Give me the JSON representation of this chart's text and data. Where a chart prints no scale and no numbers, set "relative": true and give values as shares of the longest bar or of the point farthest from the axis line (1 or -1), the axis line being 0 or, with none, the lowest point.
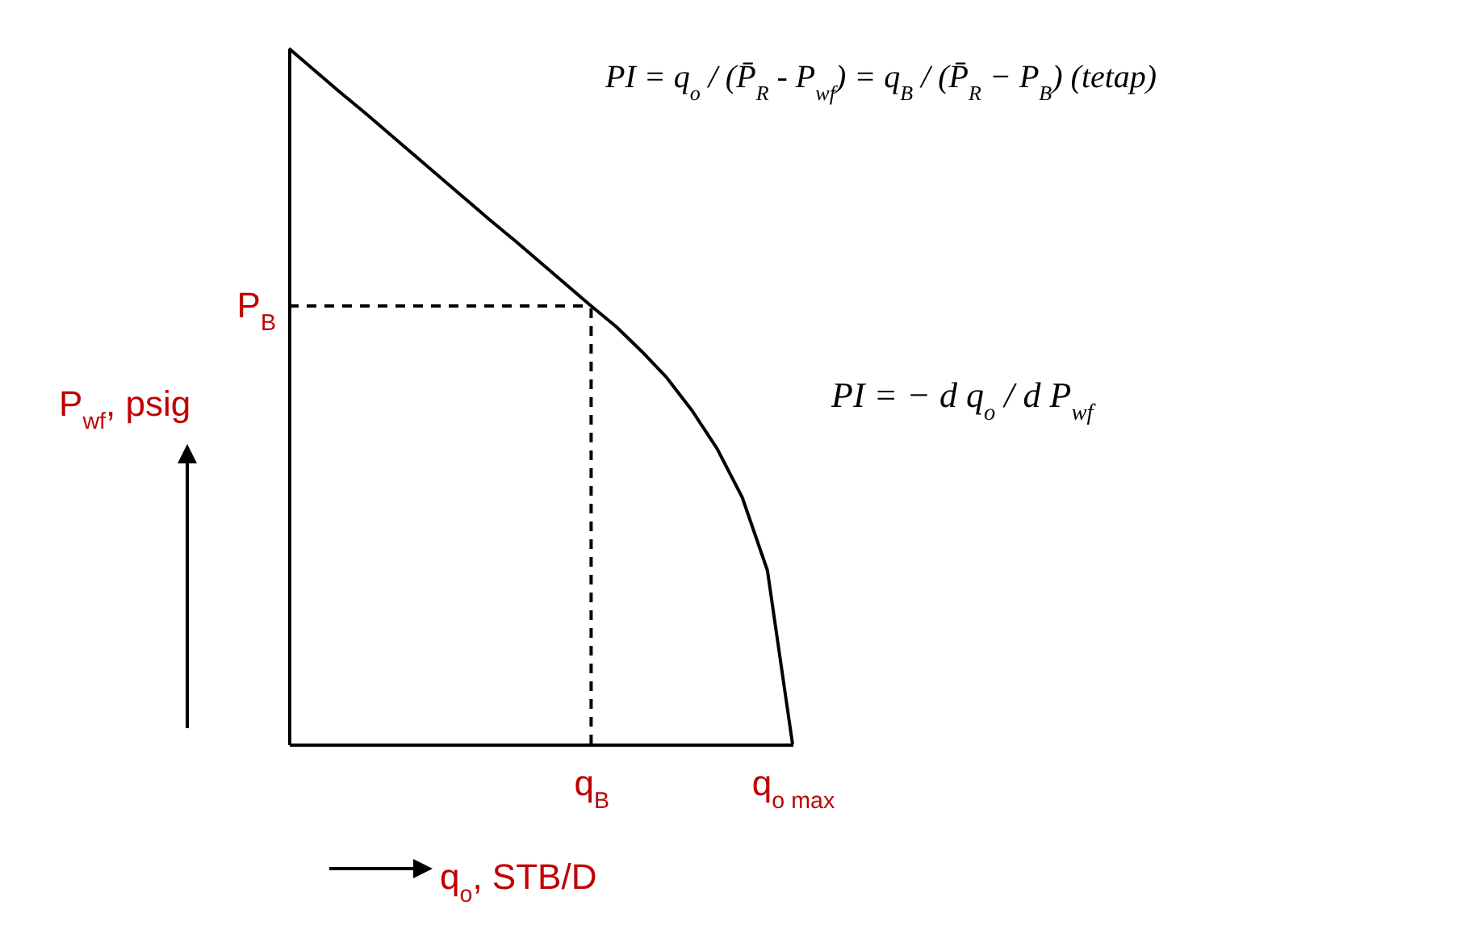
{
  "chart_data": {
    "type": "line",
    "relative": true,
    "xlabel": "q$_{o}$, STB/D",
    "ylabel": "P$_{wf}$, psig",
    "tick_labels": "x",
    "categories": [
      null,
      null,
      null,
      null,
      null,
      null,
      null,
      null,
      null,
      null,
      null,
      null,
      "q$_{B}$",
      null,
      null,
      null,
      null,
      null,
      null,
      null,
      "q$_{o max}$"
    ],
    "series": [
      {
        "color": "#000000",
        "values": [
          1,
          0.969,
          0.938,
          0.908,
          0.877,
          0.846,
          0.815,
          0.784,
          0.753,
          0.723,
          0.692,
          0.661,
          0.63,
          0.6,
          0.565,
          0.527,
          0.48,
          0.425,
          0.355,
          0.25,
          0
        ]
      }
    ],
    "ref_lines": [
      {
        "axis": "x",
        "value": "q$_{B}$",
        "color": "#000000",
        "line_style": "dashed"
      },
      {
        "axis": "y",
        "value": 0.63,
        "label": "P$_{B}$",
        "color": "#000000",
        "line_style": "dashed"
      }
    ],
    "annotations": [
      "PI = q$_{o}$ / (P̄$_{R}$ - P$_{wf}$) = q$_{B}$ / (P̄$_{R}$ − P$_{B}$)   (tetap)",
      "PI = − d q$_{o}$ / d P$_{wf}$"
    ]
  }
}
